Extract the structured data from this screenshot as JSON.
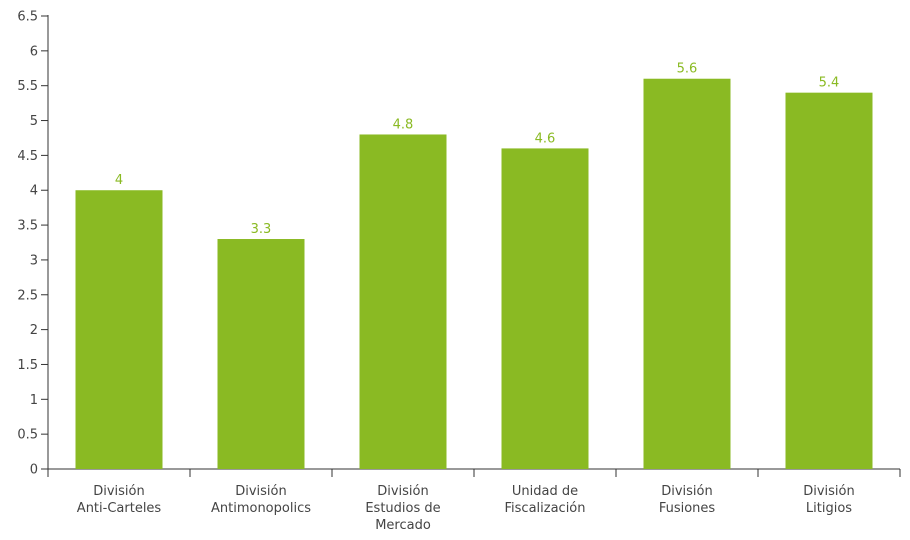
{
  "chart_data": {
    "type": "bar",
    "categories": [
      [
        "División",
        "Anti-Carteles"
      ],
      [
        "División",
        "Antimonopolics"
      ],
      [
        "División",
        "Estudios de",
        "Mercado"
      ],
      [
        "Unidad de",
        "Fiscalización"
      ],
      [
        "División",
        "Fusiones"
      ],
      [
        "División",
        "Litigios"
      ]
    ],
    "values": [
      4,
      3.3,
      4.8,
      4.6,
      5.6,
      5.4
    ],
    "value_labels": [
      "4",
      "3.3",
      "4.8",
      "4.6",
      "5.6",
      "5.4"
    ],
    "ylim": [
      0,
      6.5
    ],
    "yticks": [
      "0",
      "0.5",
      "1",
      "1.5",
      "2",
      "2.5",
      "3",
      "3.5",
      "4",
      "4.5",
      "5",
      "5.5",
      "6",
      "6.5"
    ],
    "ytick_values": [
      0,
      0.5,
      1,
      1.5,
      2,
      2.5,
      3,
      3.5,
      4,
      4.5,
      5,
      5.5,
      6,
      6.5
    ],
    "bar_color": "#8aba23",
    "label_color": "#8aba23",
    "grid": false,
    "legend": "none"
  }
}
